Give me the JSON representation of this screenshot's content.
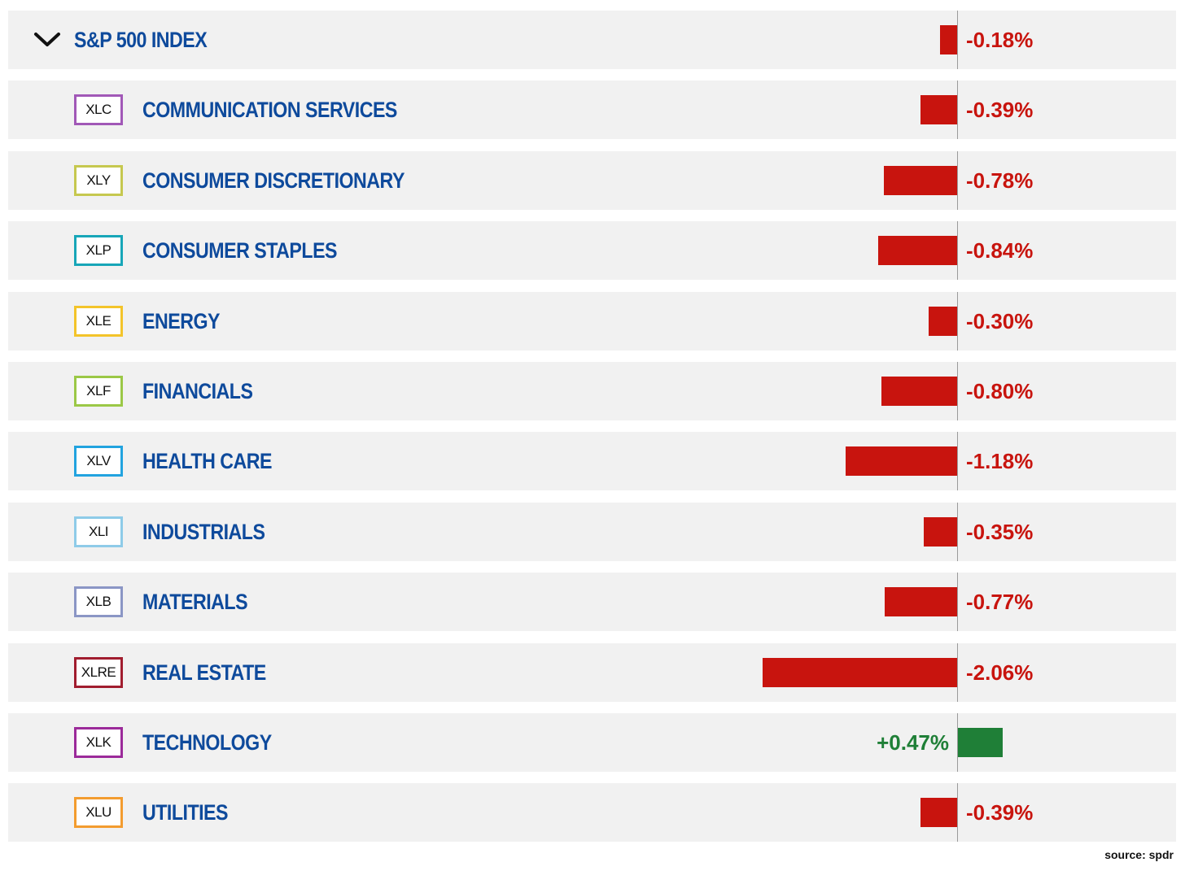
{
  "index": {
    "label": "S&P 500 INDEX",
    "change_pct": -0.18,
    "change_text": "-0.18%",
    "expand_icon": "chevron-down-icon"
  },
  "sectors": [
    {
      "ticker": "XLC",
      "name": "COMMUNICATION SERVICES",
      "change_pct": -0.39,
      "change_text": "-0.39%",
      "ticker_color": "#a158b7"
    },
    {
      "ticker": "XLY",
      "name": "CONSUMER DISCRETIONARY",
      "change_pct": -0.78,
      "change_text": "-0.78%",
      "ticker_color": "#c6c84f"
    },
    {
      "ticker": "XLP",
      "name": "CONSUMER STAPLES",
      "change_pct": -0.84,
      "change_text": "-0.84%",
      "ticker_color": "#17a6b8"
    },
    {
      "ticker": "XLE",
      "name": "ENERGY",
      "change_pct": -0.3,
      "change_text": "-0.30%",
      "ticker_color": "#f3c42a"
    },
    {
      "ticker": "XLF",
      "name": "FINANCIALS",
      "change_pct": -0.8,
      "change_text": "-0.80%",
      "ticker_color": "#9bc846"
    },
    {
      "ticker": "XLV",
      "name": "HEALTH CARE",
      "change_pct": -1.18,
      "change_text": "-1.18%",
      "ticker_color": "#22a3df"
    },
    {
      "ticker": "XLI",
      "name": "INDUSTRIALS",
      "change_pct": -0.35,
      "change_text": "-0.35%",
      "ticker_color": "#8ecbe8"
    },
    {
      "ticker": "XLB",
      "name": "MATERIALS",
      "change_pct": -0.77,
      "change_text": "-0.77%",
      "ticker_color": "#8b96c5"
    },
    {
      "ticker": "XLRE",
      "name": "REAL ESTATE",
      "change_pct": -2.06,
      "change_text": "-2.06%",
      "ticker_color": "#a11d2f"
    },
    {
      "ticker": "XLK",
      "name": "TECHNOLOGY",
      "change_pct": 0.47,
      "change_text": "+0.47%",
      "ticker_color": "#9b2a9a"
    },
    {
      "ticker": "XLU",
      "name": "UTILITIES",
      "change_pct": -0.39,
      "change_text": "-0.39%",
      "ticker_color": "#f39c2f"
    }
  ],
  "colors": {
    "negative": "#c8140e",
    "positive": "#1f7f37",
    "name_text": "#0e4a9c",
    "row_background": "#f1f1f1"
  },
  "source": "source: spdr"
}
